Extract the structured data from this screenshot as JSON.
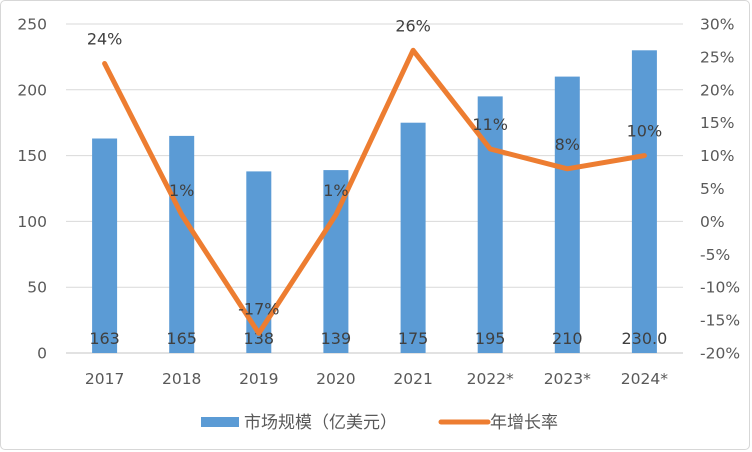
{
  "frame": {
    "background": "#FFFFFF",
    "border_color": "#D7D7D7"
  },
  "chart_data": {
    "type": "combo (bar + line)",
    "title": "",
    "categories": [
      "2017",
      "2018",
      "2019",
      "2020",
      "2021",
      "2022*",
      "2023*",
      "2024*"
    ],
    "series": [
      {
        "name": "市场规模（亿美元）",
        "type": "bar",
        "axis": "left",
        "color": "#5B9BD5",
        "values": [
          163,
          165,
          138,
          139,
          175,
          195,
          210,
          230
        ],
        "labels": [
          "163",
          "165",
          "138",
          "139",
          "175",
          "195",
          "210",
          "230.0"
        ]
      },
      {
        "name": "年增长率",
        "type": "line",
        "axis": "right",
        "color": "#ED7D31",
        "values": [
          24,
          1,
          -17,
          1,
          26,
          11,
          8,
          10
        ],
        "labels": [
          "24%",
          "1%",
          "-17%",
          "1%",
          "26%",
          "11%",
          "8%",
          "10%"
        ]
      }
    ],
    "left_axis": {
      "min": 0,
      "max": 250,
      "step": 50,
      "tick_labels": [
        "0",
        "50",
        "100",
        "150",
        "200",
        "250"
      ]
    },
    "right_axis": {
      "min": -20,
      "max": 30,
      "step": 5,
      "tick_labels": [
        "-20%",
        "-15%",
        "-10%",
        "-5%",
        "0%",
        "5%",
        "10%",
        "15%",
        "20%",
        "25%",
        "30%"
      ]
    },
    "grid": {
      "horizontal": true,
      "vertical": false,
      "color": "#D9D9D9",
      "axis_line_color": "#C6C6C6"
    },
    "legend_position": "bottom",
    "label_color": "#404040",
    "axis_label_color": "#595959"
  }
}
